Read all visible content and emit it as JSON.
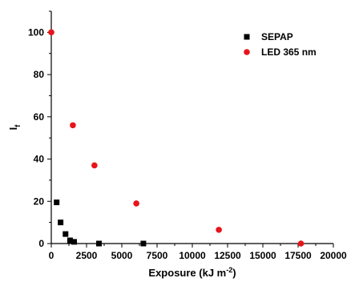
{
  "chart_data": {
    "type": "scatter",
    "title": "",
    "xlabel": "Exposure (kJ m⁻²)",
    "xlabel_parts": {
      "base": "Exposure (kJ m",
      "sup": "-2",
      "tail": ")"
    },
    "ylabel": "I_f",
    "ylabel_parts": {
      "base": "I",
      "sub": "f"
    },
    "xlim": [
      0,
      20000
    ],
    "ylim": [
      0,
      110
    ],
    "x_ticks": [
      0,
      2500,
      5000,
      7500,
      10000,
      12500,
      15000,
      17500,
      20000
    ],
    "y_ticks": [
      0,
      20,
      40,
      60,
      80,
      100
    ],
    "grid": false,
    "legend_position": "top-right",
    "series": [
      {
        "name": "SEPAP",
        "marker": "square",
        "color": "#000000",
        "points": [
          {
            "x": 380,
            "y": 19.5
          },
          {
            "x": 660,
            "y": 10
          },
          {
            "x": 1010,
            "y": 4.5
          },
          {
            "x": 1330,
            "y": 1.5
          },
          {
            "x": 1620,
            "y": 0.8
          },
          {
            "x": 3380,
            "y": 0
          },
          {
            "x": 6530,
            "y": 0
          }
        ]
      },
      {
        "name": "LED 365 nm",
        "marker": "circle",
        "color": "#e8141b",
        "points": [
          {
            "x": 0,
            "y": 100
          },
          {
            "x": 1530,
            "y": 56
          },
          {
            "x": 3060,
            "y": 37
          },
          {
            "x": 6030,
            "y": 19
          },
          {
            "x": 11880,
            "y": 6.5
          },
          {
            "x": 17700,
            "y": 0
          }
        ]
      }
    ]
  }
}
